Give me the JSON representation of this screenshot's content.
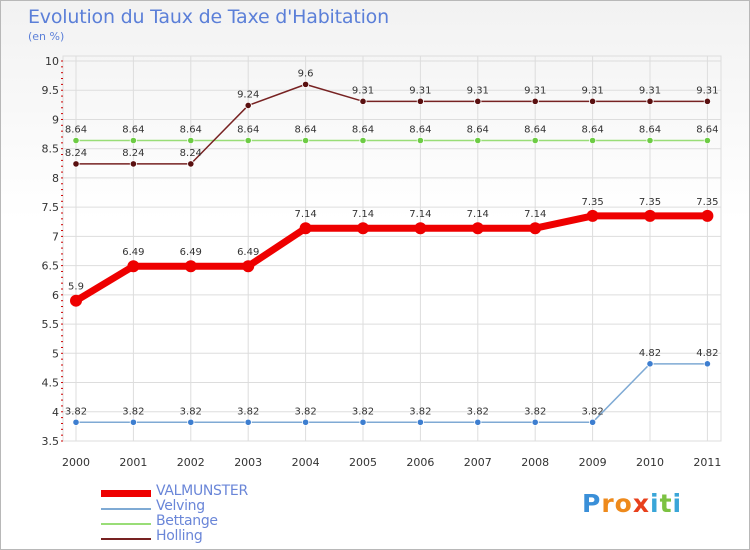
{
  "colors": {
    "title": "#5b7fd8",
    "VALMUNSTER": "#ee0000",
    "Velving": "#7faad4",
    "Bettange": "#99dd77",
    "Holling": "#772222",
    "Holling_marker": "#5a1010",
    "Velving_marker": "#3d7ed0",
    "Bettange_marker": "#6dcc44",
    "grid": "#dddddd",
    "axis_ticks": "#cc0000"
  },
  "chart_data": {
    "type": "line",
    "title": "Evolution du Taux de Taxe d'Habitation",
    "subtitle": "(en %)",
    "xlabel": "",
    "ylabel": "(en %)",
    "ylim": [
      3.5,
      10
    ],
    "yticks": [
      "3.5",
      "4",
      "4.5",
      "5",
      "5.5",
      "6",
      "6.5",
      "7",
      "7.5",
      "8",
      "8.5",
      "9",
      "9.5",
      "10"
    ],
    "categories": [
      "2000",
      "2001",
      "2002",
      "2003",
      "2004",
      "2005",
      "2006",
      "2007",
      "2008",
      "2009",
      "2010",
      "2011"
    ],
    "series": [
      {
        "name": "VALMUNSTER",
        "values": [
          5.9,
          6.49,
          6.49,
          6.49,
          7.14,
          7.14,
          7.14,
          7.14,
          7.14,
          7.35,
          7.35,
          7.35
        ],
        "labels": [
          "5.9",
          "6.49",
          "6.49",
          "6.49",
          "7.14",
          "7.14",
          "7.14",
          "7.14",
          "7.14",
          "7.35",
          "7.35",
          "7.35"
        ]
      },
      {
        "name": "Velving",
        "values": [
          3.82,
          3.82,
          3.82,
          3.82,
          3.82,
          3.82,
          3.82,
          3.82,
          3.82,
          3.82,
          4.82,
          4.82
        ],
        "labels": [
          "3.82",
          "3.82",
          "3.82",
          "3.82",
          "3.82",
          "3.82",
          "3.82",
          "3.82",
          "3.82",
          "3.82",
          "4.82",
          "4.82"
        ]
      },
      {
        "name": "Bettange",
        "values": [
          8.64,
          8.64,
          8.64,
          8.64,
          8.64,
          8.64,
          8.64,
          8.64,
          8.64,
          8.64,
          8.64,
          8.64
        ],
        "labels": [
          "8.64",
          "8.64",
          "8.64",
          "8.64",
          "8.64",
          "8.64",
          "8.64",
          "8.64",
          "8.64",
          "8.64",
          "8.64",
          "8.64"
        ]
      },
      {
        "name": "Holling",
        "values": [
          8.24,
          8.24,
          8.24,
          9.24,
          9.6,
          9.31,
          9.31,
          9.31,
          9.31,
          9.31,
          9.31,
          9.31
        ],
        "labels": [
          "8.24",
          "8.24",
          "8.24",
          "9.24",
          "9.6",
          "9.31",
          "9.31",
          "9.31",
          "9.31",
          "9.31",
          "9.31",
          "9.31"
        ]
      }
    ],
    "legend_position": "bottom-left"
  },
  "logo": {
    "letters": [
      "P",
      "r",
      "o",
      "x",
      "i",
      "t",
      "i"
    ],
    "colors": [
      "#3a8fd8",
      "#ee8a1c",
      "#ee8a1c",
      "#e8401c",
      "#3aa6d8",
      "#7cc242",
      "#3aa6d8"
    ]
  }
}
